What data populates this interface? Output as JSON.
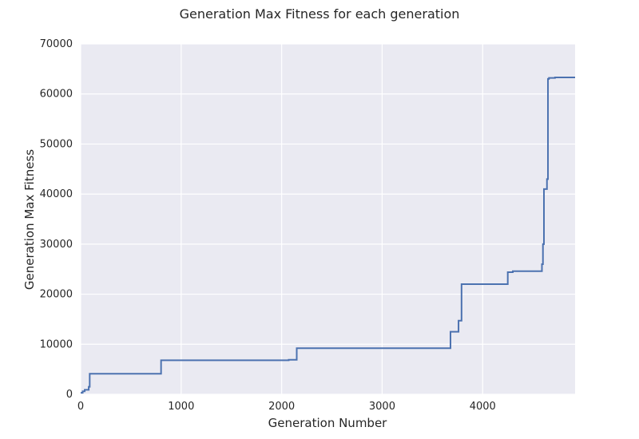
{
  "chart_data": {
    "type": "line",
    "title": "Generation Max Fitness for each generation",
    "xlabel": "Generation Number",
    "ylabel": "Generation Max Fitness",
    "xlim": [
      0,
      4920
    ],
    "ylim": [
      0,
      70000
    ],
    "x_ticks": [
      0,
      1000,
      2000,
      3000,
      4000
    ],
    "y_ticks": [
      0,
      10000,
      20000,
      30000,
      40000,
      50000,
      60000,
      70000
    ],
    "grid": true,
    "plot_background": "#eaeaf2",
    "grid_color": "#ffffff",
    "series": [
      {
        "color": "#4c72b0",
        "step": "post",
        "x": [
          0,
          20,
          40,
          80,
          90,
          800,
          2070,
          2150,
          3680,
          3720,
          3760,
          3790,
          4250,
          4300,
          4590,
          4600,
          4610,
          4640,
          4650,
          4660,
          4720,
          4920
        ],
        "y": [
          300,
          600,
          900,
          1500,
          4100,
          6800,
          6900,
          9200,
          12500,
          12500,
          14700,
          22000,
          24400,
          24600,
          26000,
          30000,
          41000,
          43000,
          63000,
          63200,
          63300,
          63300
        ]
      }
    ]
  }
}
